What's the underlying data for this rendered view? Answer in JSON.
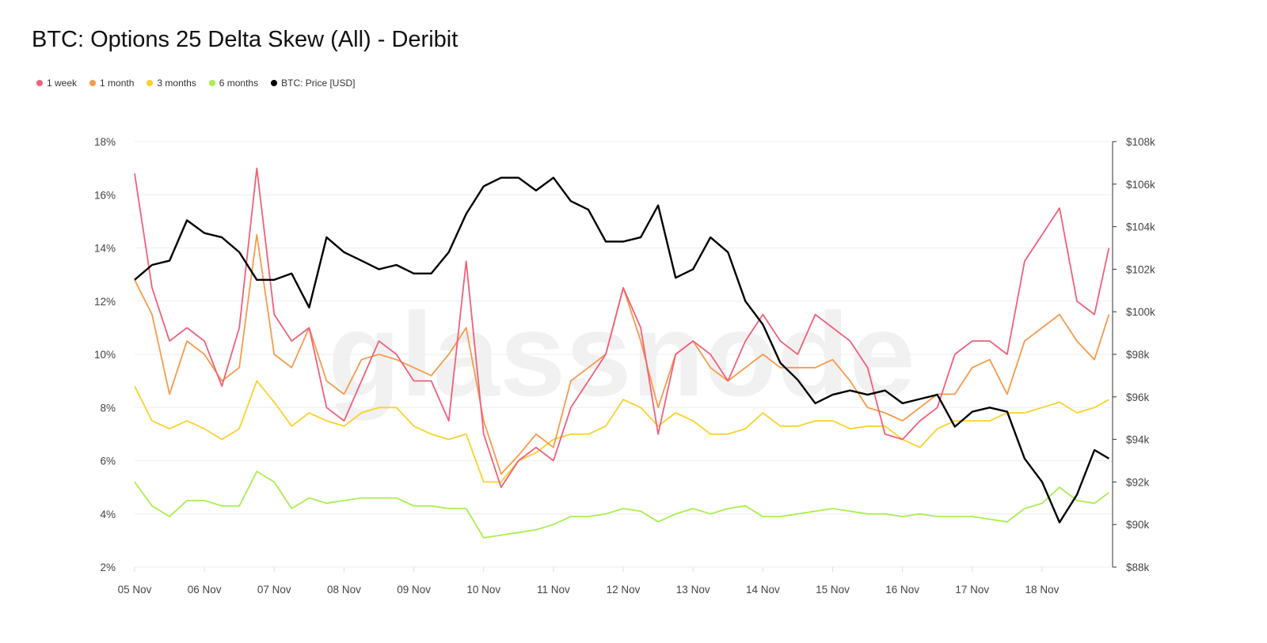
{
  "chart_data": {
    "type": "line",
    "title": "BTC: Options 25 Delta Skew (All) - Deribit",
    "watermark": "glassnode",
    "grid": true,
    "legend_placement": "top-left",
    "x_ticks": [
      "05 Nov",
      "06 Nov",
      "07 Nov",
      "08 Nov",
      "09 Nov",
      "10 Nov",
      "11 Nov",
      "12 Nov",
      "13 Nov",
      "14 Nov",
      "15 Nov",
      "16 Nov",
      "17 Nov",
      "18 Nov"
    ],
    "y_left": {
      "ticks": [
        "2%",
        "4%",
        "6%",
        "8%",
        "10%",
        "12%",
        "14%",
        "16%",
        "18%"
      ],
      "range": [
        2,
        18
      ],
      "unit": "%"
    },
    "y_right": {
      "ticks": [
        "$88k",
        "$90k",
        "$92k",
        "$94k",
        "$96k",
        "$98k",
        "$100k",
        "$102k",
        "$104k",
        "$106k",
        "$108k"
      ],
      "range": [
        88,
        108
      ],
      "unit": "$k"
    },
    "x": [
      "05 Nov 00:00",
      "05 Nov 06:00",
      "05 Nov 12:00",
      "05 Nov 18:00",
      "06 Nov 00:00",
      "06 Nov 06:00",
      "06 Nov 12:00",
      "06 Nov 18:00",
      "07 Nov 00:00",
      "07 Nov 06:00",
      "07 Nov 12:00",
      "07 Nov 18:00",
      "08 Nov 00:00",
      "08 Nov 06:00",
      "08 Nov 12:00",
      "08 Nov 18:00",
      "09 Nov 00:00",
      "09 Nov 06:00",
      "09 Nov 12:00",
      "09 Nov 18:00",
      "10 Nov 00:00",
      "10 Nov 06:00",
      "10 Nov 12:00",
      "10 Nov 18:00",
      "11 Nov 00:00",
      "11 Nov 06:00",
      "11 Nov 12:00",
      "11 Nov 18:00",
      "12 Nov 00:00",
      "12 Nov 06:00",
      "12 Nov 12:00",
      "12 Nov 18:00",
      "13 Nov 00:00",
      "13 Nov 06:00",
      "13 Nov 12:00",
      "13 Nov 18:00",
      "14 Nov 00:00",
      "14 Nov 06:00",
      "14 Nov 12:00",
      "14 Nov 18:00",
      "15 Nov 00:00",
      "15 Nov 06:00",
      "15 Nov 12:00",
      "15 Nov 18:00",
      "16 Nov 00:00",
      "16 Nov 06:00",
      "16 Nov 12:00",
      "16 Nov 18:00",
      "17 Nov 00:00",
      "17 Nov 06:00",
      "17 Nov 12:00",
      "17 Nov 18:00",
      "18 Nov 00:00",
      "18 Nov 06:00",
      "18 Nov 12:00",
      "18 Nov 18:00",
      "18 Nov 23:00"
    ],
    "series": [
      {
        "name": "1 week",
        "color": "#f0607a",
        "axis": "left",
        "values": [
          16.8,
          12.5,
          10.5,
          11,
          10.5,
          8.8,
          11,
          17,
          11.5,
          10.5,
          11,
          8,
          7.5,
          9,
          10.5,
          10,
          9,
          9,
          7.5,
          13.5,
          7,
          5,
          6,
          6.5,
          6,
          8,
          9,
          10,
          12.5,
          11,
          7,
          10,
          10.5,
          10,
          9,
          10.5,
          11.5,
          10.5,
          10,
          11.5,
          11,
          10.5,
          9.5,
          7,
          6.8,
          7.5,
          8,
          10,
          10.5,
          10.5,
          10,
          13.5,
          14.5,
          15.5,
          12,
          11.5,
          14
        ]
      },
      {
        "name": "1 month",
        "color": "#f59b4c",
        "axis": "left",
        "values": [
          12.8,
          11.5,
          8.5,
          10.5,
          10,
          9,
          9.5,
          14.5,
          10,
          9.5,
          11,
          9,
          8.5,
          9.8,
          10,
          9.8,
          9.5,
          9.2,
          10,
          11,
          7.5,
          5.5,
          6.2,
          7,
          6.5,
          9,
          9.5,
          10,
          12.5,
          10.5,
          8,
          10,
          10.5,
          9.5,
          9,
          9.5,
          10,
          9.5,
          9.5,
          9.5,
          9.8,
          9,
          8,
          7.8,
          7.5,
          8,
          8.5,
          8.5,
          9.5,
          9.8,
          8.5,
          10.5,
          11,
          11.5,
          10.5,
          9.8,
          11.5
        ]
      },
      {
        "name": "3 months",
        "color": "#fcd12a",
        "axis": "left",
        "values": [
          8.8,
          7.5,
          7.2,
          7.5,
          7.2,
          6.8,
          7.2,
          9,
          8.2,
          7.3,
          7.8,
          7.5,
          7.3,
          7.8,
          8,
          8,
          7.3,
          7,
          6.8,
          7,
          5.2,
          5.2,
          6,
          6.3,
          6.8,
          7,
          7,
          7.3,
          8.3,
          8,
          7.3,
          7.8,
          7.5,
          7,
          7,
          7.2,
          7.8,
          7.3,
          7.3,
          7.5,
          7.5,
          7.2,
          7.3,
          7.3,
          6.8,
          6.5,
          7.2,
          7.5,
          7.5,
          7.5,
          7.8,
          7.8,
          8,
          8.2,
          7.8,
          8,
          8.3
        ]
      },
      {
        "name": "6 months",
        "color": "#a8ef4e",
        "axis": "left",
        "values": [
          5.2,
          4.3,
          3.9,
          4.5,
          4.5,
          4.3,
          4.3,
          5.6,
          5.2,
          4.2,
          4.6,
          4.4,
          4.5,
          4.6,
          4.6,
          4.6,
          4.3,
          4.3,
          4.2,
          4.2,
          3.1,
          3.2,
          3.3,
          3.4,
          3.6,
          3.9,
          3.9,
          4.0,
          4.2,
          4.1,
          3.7,
          4.0,
          4.2,
          4.0,
          4.2,
          4.3,
          3.9,
          3.9,
          4.0,
          4.1,
          4.2,
          4.1,
          4.0,
          4.0,
          3.9,
          4.0,
          3.9,
          3.9,
          3.9,
          3.8,
          3.7,
          4.2,
          4.4,
          5.0,
          4.5,
          4.4,
          4.8
        ]
      },
      {
        "name": "BTC: Price [USD]",
        "color": "#000000",
        "axis": "right",
        "values": [
          101.5,
          102.2,
          102.4,
          104.3,
          103.7,
          103.5,
          102.8,
          101.5,
          101.5,
          101.8,
          100.2,
          103.5,
          102.8,
          102.4,
          102,
          102.2,
          101.8,
          101.8,
          102.8,
          104.6,
          105.9,
          106.3,
          106.3,
          105.7,
          106.3,
          105.2,
          104.8,
          103.3,
          103.3,
          103.5,
          105,
          101.6,
          102,
          103.5,
          102.8,
          100.5,
          99.4,
          97.6,
          96.8,
          95.7,
          96.1,
          96.3,
          96.1,
          96.3,
          95.7,
          95.9,
          96.1,
          94.6,
          95.3,
          95.5,
          95.3,
          93.1,
          92,
          90.1,
          91.4,
          93.5,
          93.1
        ]
      }
    ]
  }
}
